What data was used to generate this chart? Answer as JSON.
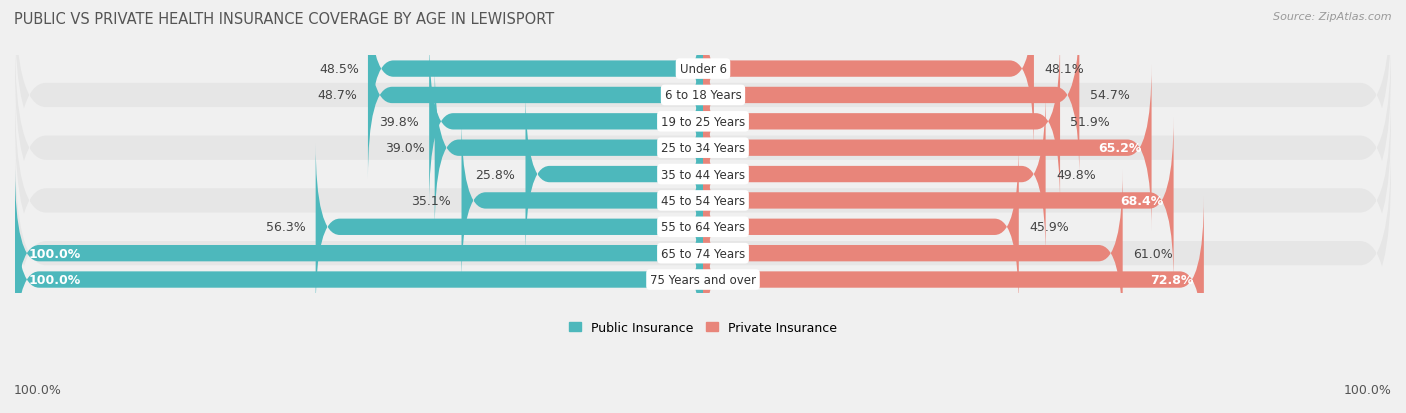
{
  "title": "PUBLIC VS PRIVATE HEALTH INSURANCE COVERAGE BY AGE IN LEWISPORT",
  "source": "Source: ZipAtlas.com",
  "categories": [
    "Under 6",
    "6 to 18 Years",
    "19 to 25 Years",
    "25 to 34 Years",
    "35 to 44 Years",
    "45 to 54 Years",
    "55 to 64 Years",
    "65 to 74 Years",
    "75 Years and over"
  ],
  "public_values": [
    48.5,
    48.7,
    39.8,
    39.0,
    25.8,
    35.1,
    56.3,
    100.0,
    100.0
  ],
  "private_values": [
    48.1,
    54.7,
    51.9,
    65.2,
    49.8,
    68.4,
    45.9,
    61.0,
    72.8
  ],
  "public_color": "#4db8bc",
  "private_color": "#e8857a",
  "public_label": "Public Insurance",
  "private_label": "Private Insurance",
  "max_value": 100.0,
  "axis_label_left": "100.0%",
  "axis_label_right": "100.0%",
  "label_fontsize": 9,
  "title_fontsize": 10.5,
  "source_fontsize": 8,
  "category_fontsize": 8.5,
  "row_colors": [
    "#f0f0f0",
    "#e6e6e6"
  ]
}
